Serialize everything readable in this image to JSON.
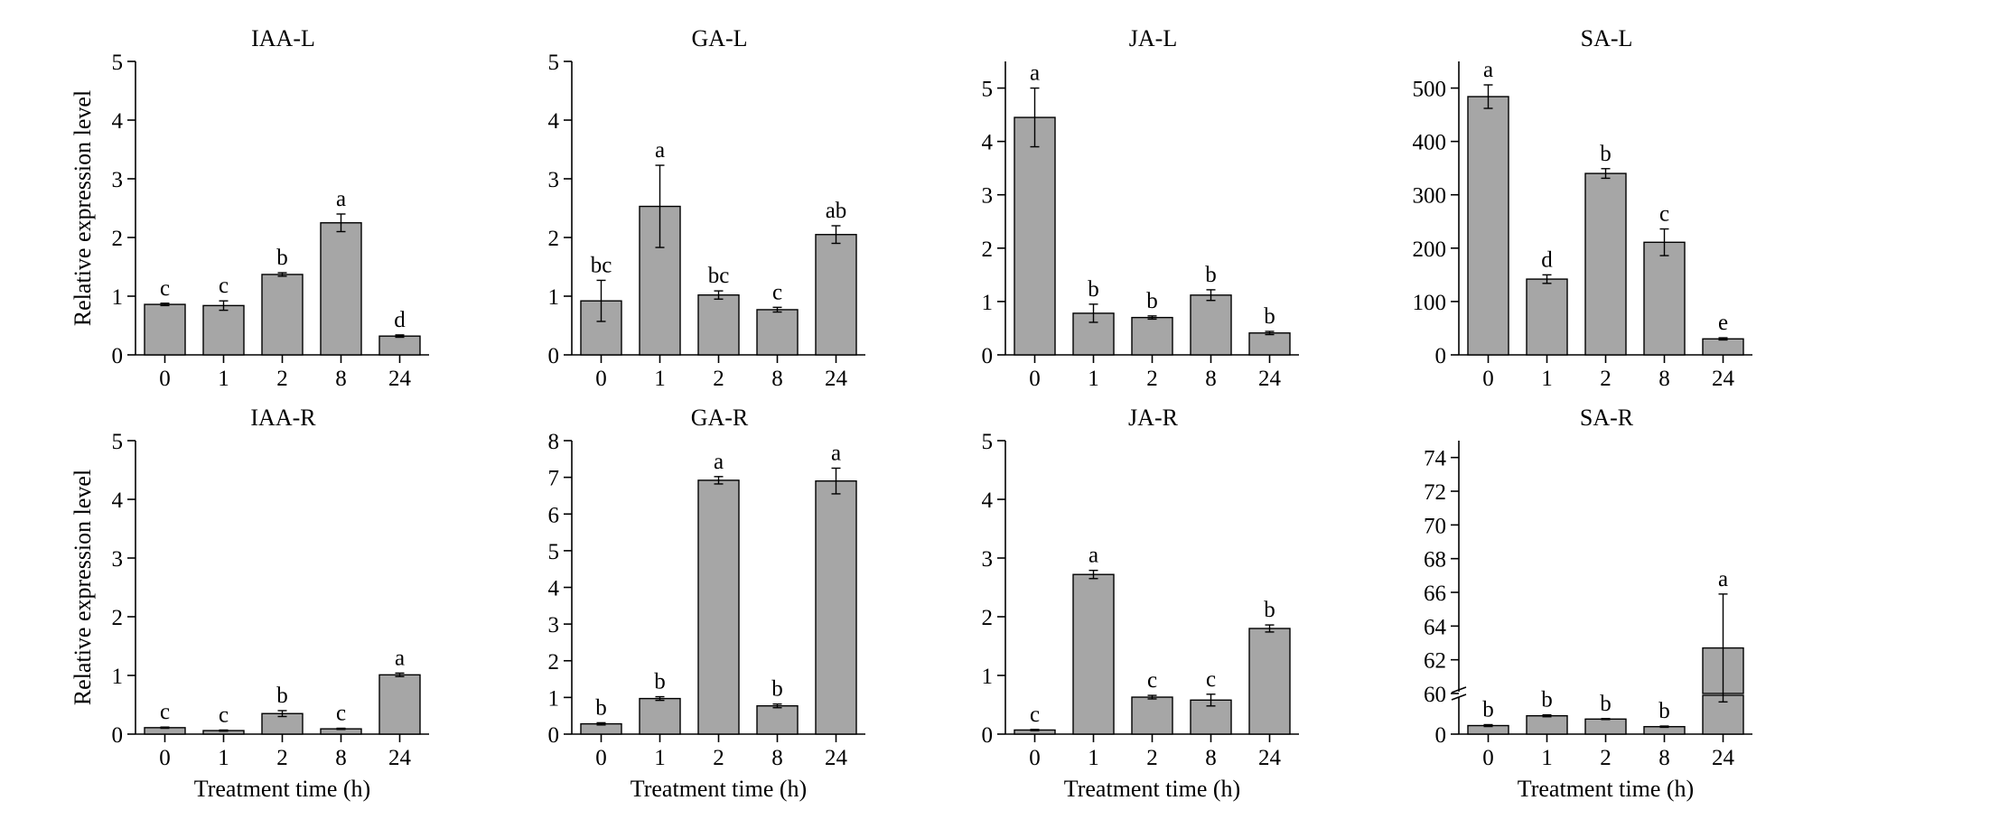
{
  "figure": {
    "bar_color": "#a6a6a6",
    "ylabel": "Relative expression level",
    "xlabel": "Treatment time (h)"
  },
  "chart_data": [
    {
      "type": "bar",
      "title": "IAA-L",
      "categories": [
        "0",
        "1",
        "2",
        "8",
        "24"
      ],
      "values": [
        0.86,
        0.84,
        1.37,
        2.25,
        0.32
      ],
      "errors": [
        0.02,
        0.08,
        0.03,
        0.15,
        0.02
      ],
      "letters": [
        "c",
        "c",
        "b",
        "a",
        "d"
      ],
      "ylim": [
        0,
        5
      ],
      "yticks": [
        0,
        1,
        2,
        3,
        4,
        5
      ],
      "ylabel": "Relative expression level",
      "xlabel": ""
    },
    {
      "type": "bar",
      "title": "GA-L",
      "categories": [
        "0",
        "1",
        "2",
        "8",
        "24"
      ],
      "values": [
        0.92,
        2.53,
        1.02,
        0.77,
        2.05
      ],
      "errors": [
        0.35,
        0.7,
        0.07,
        0.04,
        0.15
      ],
      "letters": [
        "bc",
        "a",
        "bc",
        "c",
        "ab"
      ],
      "ylim": [
        0,
        5
      ],
      "yticks": [
        0,
        1,
        2,
        3,
        4,
        5
      ],
      "ylabel": "",
      "xlabel": ""
    },
    {
      "type": "bar",
      "title": "JA-L",
      "categories": [
        "0",
        "1",
        "2",
        "8",
        "24"
      ],
      "values": [
        4.45,
        0.78,
        0.7,
        1.12,
        0.41
      ],
      "errors": [
        0.55,
        0.17,
        0.03,
        0.1,
        0.03
      ],
      "letters": [
        "a",
        "b",
        "b",
        "b",
        "b"
      ],
      "ylim": [
        0,
        5.5
      ],
      "yticks": [
        0,
        1,
        2,
        3,
        4,
        5
      ],
      "ylabel": "",
      "xlabel": ""
    },
    {
      "type": "bar",
      "title": "SA-L",
      "categories": [
        "0",
        "1",
        "2",
        "8",
        "24"
      ],
      "values": [
        484,
        142,
        340,
        211,
        30
      ],
      "errors": [
        22,
        8,
        9,
        25,
        2
      ],
      "letters": [
        "a",
        "d",
        "b",
        "c",
        "e"
      ],
      "ylim": [
        0,
        550
      ],
      "yticks": [
        0,
        100,
        200,
        300,
        400,
        500
      ],
      "ylabel": "",
      "xlabel": ""
    },
    {
      "type": "bar",
      "title": "IAA-R",
      "categories": [
        "0",
        "1",
        "2",
        "8",
        "24"
      ],
      "values": [
        0.11,
        0.06,
        0.35,
        0.09,
        1.01
      ],
      "errors": [
        0.01,
        0.01,
        0.05,
        0.01,
        0.03
      ],
      "letters": [
        "c",
        "c",
        "b",
        "c",
        "a"
      ],
      "ylim": [
        0,
        5
      ],
      "yticks": [
        0,
        1,
        2,
        3,
        4,
        5
      ],
      "ylabel": "Relative expression level",
      "xlabel": "Treatment time (h)"
    },
    {
      "type": "bar",
      "title": "GA-R",
      "categories": [
        "0",
        "1",
        "2",
        "8",
        "24"
      ],
      "values": [
        0.28,
        0.97,
        6.92,
        0.77,
        6.9
      ],
      "errors": [
        0.03,
        0.05,
        0.1,
        0.05,
        0.35
      ],
      "letters": [
        "b",
        "b",
        "a",
        "b",
        "a"
      ],
      "ylim": [
        0,
        8
      ],
      "yticks": [
        0,
        1,
        2,
        3,
        4,
        5,
        6,
        7,
        8
      ],
      "ylabel": "",
      "xlabel": "Treatment time (h)"
    },
    {
      "type": "bar",
      "title": "JA-R",
      "categories": [
        "0",
        "1",
        "2",
        "8",
        "24"
      ],
      "values": [
        0.07,
        2.72,
        0.63,
        0.58,
        1.8
      ],
      "errors": [
        0.01,
        0.07,
        0.03,
        0.1,
        0.06
      ],
      "letters": [
        "c",
        "a",
        "c",
        "c",
        "b"
      ],
      "ylim": [
        0,
        5
      ],
      "yticks": [
        0,
        1,
        2,
        3,
        4,
        5
      ],
      "ylabel": "",
      "xlabel": "Treatment time (h)"
    },
    {
      "type": "bar",
      "title": "SA-R",
      "categories": [
        "0",
        "1",
        "2",
        "8",
        "24"
      ],
      "values": [
        0.55,
        1.18,
        0.97,
        0.48,
        62.7
      ],
      "errors": [
        0.06,
        0.06,
        0.03,
        0.04,
        3.2
      ],
      "letters": [
        "b",
        "b",
        "b",
        "b",
        "a"
      ],
      "ylim": [
        0,
        75
      ],
      "yticks": [
        0,
        60,
        62,
        64,
        66,
        68,
        70,
        72,
        74
      ],
      "axis_break": {
        "lower": [
          0,
          2.5
        ],
        "upper": [
          60,
          75
        ]
      },
      "ylabel": "",
      "xlabel": "Treatment time (h)"
    }
  ]
}
